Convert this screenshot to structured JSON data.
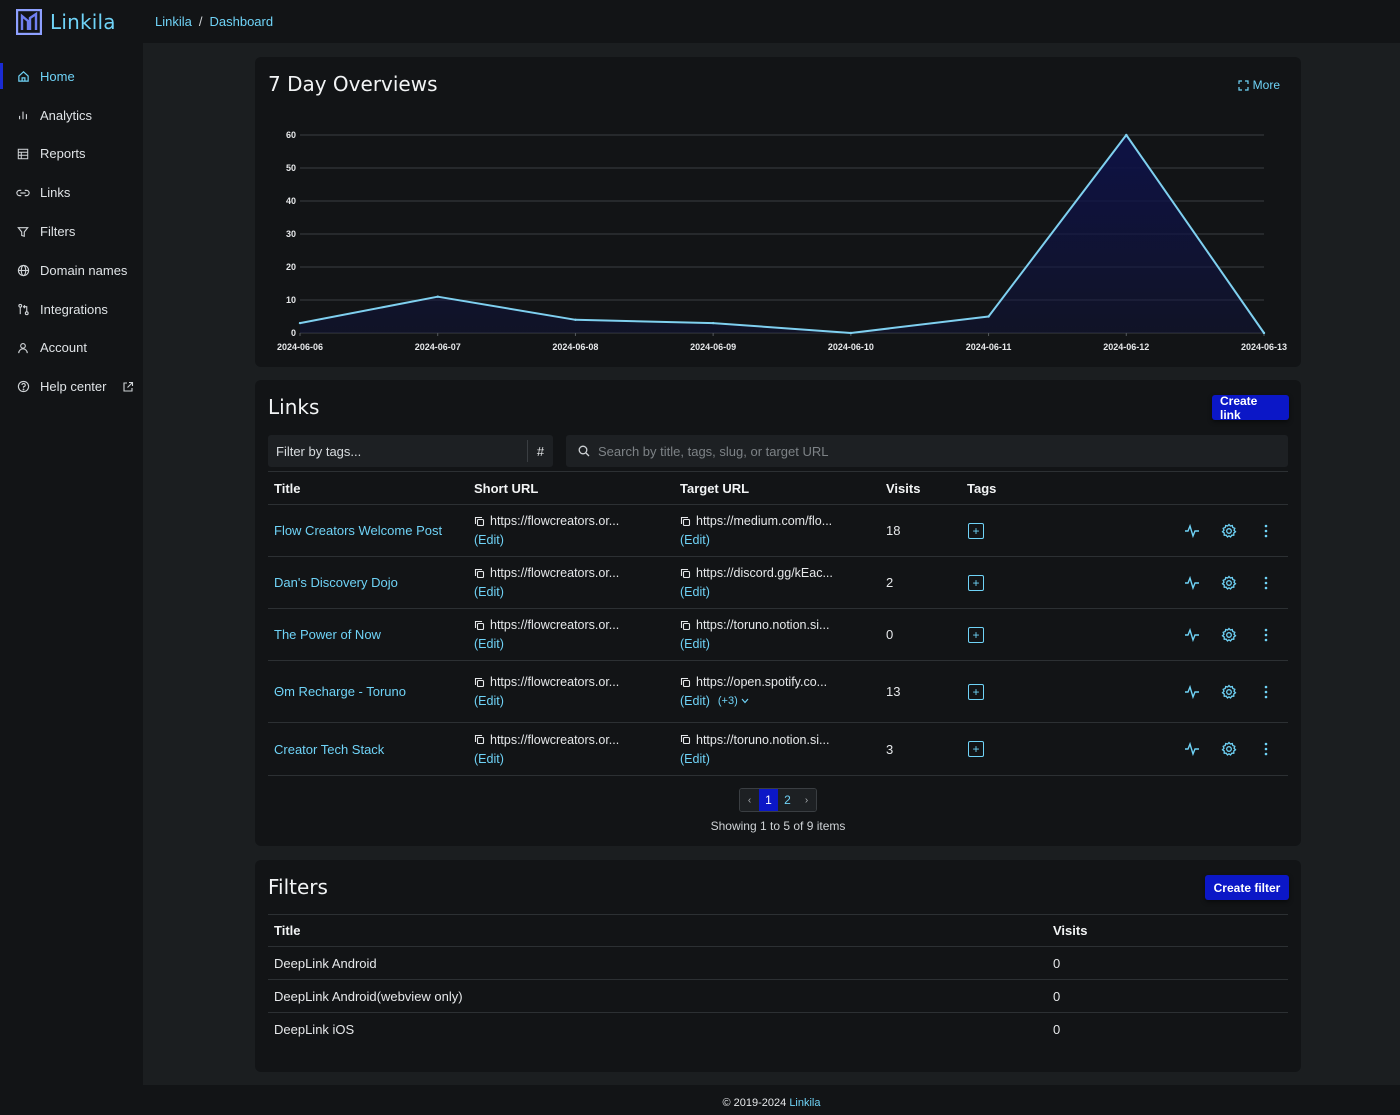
{
  "app": {
    "name": "Linkila"
  },
  "breadcrumb": {
    "root": "Linkila",
    "separator": "/",
    "current": "Dashboard"
  },
  "sidebar": {
    "items": [
      {
        "label": "Home",
        "icon": "home-icon",
        "active": true
      },
      {
        "label": "Analytics",
        "icon": "bar-chart-icon"
      },
      {
        "label": "Reports",
        "icon": "table-icon"
      },
      {
        "label": "Links",
        "icon": "link-icon"
      },
      {
        "label": "Filters",
        "icon": "funnel-icon"
      },
      {
        "label": "Domain names",
        "icon": "globe-icon"
      },
      {
        "label": "Integrations",
        "icon": "git-compare-icon"
      },
      {
        "label": "Account",
        "icon": "user-icon"
      },
      {
        "label": "Help center",
        "icon": "help-circle-icon",
        "external": true
      }
    ]
  },
  "overview": {
    "title": "7 Day Overviews",
    "more_label": "More"
  },
  "chart_data": {
    "type": "area",
    "categories": [
      "2024-06-06",
      "2024-06-07",
      "2024-06-08",
      "2024-06-09",
      "2024-06-10",
      "2024-06-11",
      "2024-06-12",
      "2024-06-13"
    ],
    "values": [
      3,
      11,
      4,
      3,
      0,
      5,
      60,
      0
    ],
    "yticks": [
      0,
      10,
      20,
      30,
      40,
      50,
      60
    ],
    "ylim": [
      0,
      60
    ],
    "grid": true,
    "line_color": "#7fd0f0",
    "fill_color": "#0e1245"
  },
  "links": {
    "title": "Links",
    "create_label": "Create link",
    "filter_placeholder": "Filter by tags...",
    "hash_label": "#",
    "search_placeholder": "Search by title, tags, slug, or target URL",
    "columns": {
      "title": "Title",
      "short_url": "Short URL",
      "target_url": "Target URL",
      "visits": "Visits",
      "tags": "Tags"
    },
    "edit_label": "(Edit)",
    "rows": [
      {
        "title": "Flow Creators Welcome Post",
        "short_url": "https://flowcreators.or...",
        "target_url": "https://medium.com/flo...",
        "visits": "18"
      },
      {
        "title": "Dan's Discovery Dojo",
        "short_url": "https://flowcreators.or...",
        "target_url": "https://discord.gg/kEac...",
        "visits": "2"
      },
      {
        "title": "The Power of Now",
        "short_url": "https://flowcreators.or...",
        "target_url": "https://toruno.notion.si...",
        "visits": "0"
      },
      {
        "title": "Θm Recharge - Toruno",
        "short_url": "https://flowcreators.or...",
        "target_url": "https://open.spotify.co...",
        "visits": "13",
        "extra": "(+3)"
      },
      {
        "title": "Creator Tech Stack",
        "short_url": "https://flowcreators.or...",
        "target_url": "https://toruno.notion.si...",
        "visits": "3"
      }
    ],
    "pagination": {
      "prev": "‹",
      "pages": [
        "1",
        "2"
      ],
      "current": "1",
      "next": "›"
    },
    "showing": "Showing 1 to 5 of 9 items"
  },
  "filters": {
    "title": "Filters",
    "create_label": "Create filter",
    "columns": {
      "title": "Title",
      "visits": "Visits"
    },
    "rows": [
      {
        "title": "DeepLink Android",
        "visits": "0"
      },
      {
        "title": "DeepLink Android(webview only)",
        "visits": "0"
      },
      {
        "title": "DeepLink iOS",
        "visits": "0"
      }
    ]
  },
  "footer": {
    "copyright": "© 2019-2024",
    "brand": "Linkila"
  },
  "colors": {
    "accent": "#6fd3f7",
    "primary_button": "#0b17c7",
    "card_bg": "#121416",
    "page_bg": "#1b1e20"
  }
}
